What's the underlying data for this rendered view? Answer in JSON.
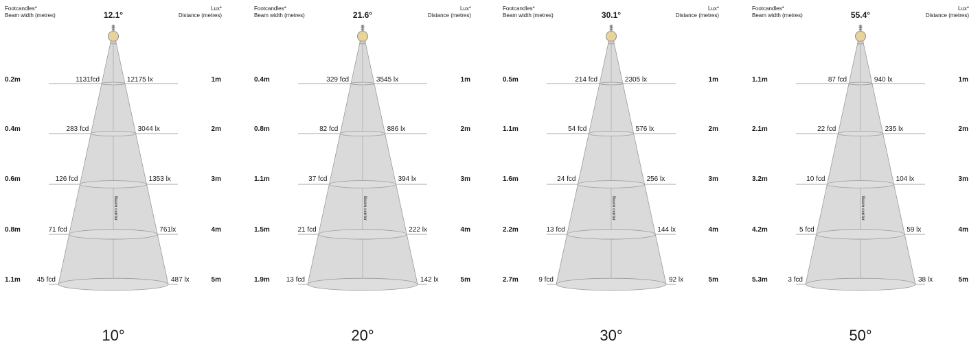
{
  "labels": {
    "footcandles": "Footcandles*",
    "beam_width": "Beam width (metres)",
    "lux": "Lux*",
    "distance": "Distance (metres)",
    "beam_center": "Beam center"
  },
  "colors": {
    "cone_fill": "#d4d4d4",
    "cone_stroke": "#9a9a9a",
    "ellipse_fill": "#dedede",
    "bulb_fill": "#e8d39a",
    "guide_line": "#8a8a8a",
    "text": "#1a1a1a"
  },
  "icons": {
    "fixture": "lamp-bulb-icon"
  },
  "panels": [
    {
      "angle_label": "10°",
      "beam_angle": "12.1°",
      "rows": [
        {
          "width": "0.2m",
          "fcd": "1131fcd",
          "lux": "12175 lx",
          "distance": "1m"
        },
        {
          "width": "0.4m",
          "fcd": "283 fcd",
          "lux": "3044 lx",
          "distance": "2m"
        },
        {
          "width": "0.6m",
          "fcd": "126 fcd",
          "lux": "1353 lx",
          "distance": "3m"
        },
        {
          "width": "0.8m",
          "fcd": "71 fcd",
          "lux": "761lx",
          "distance": "4m"
        },
        {
          "width": "1.1m",
          "fcd": "45 fcd",
          "lux": "487 lx",
          "distance": "5m"
        }
      ]
    },
    {
      "angle_label": "20°",
      "beam_angle": "21.6°",
      "rows": [
        {
          "width": "0.4m",
          "fcd": "329 fcd",
          "lux": "3545 lx",
          "distance": "1m"
        },
        {
          "width": "0.8m",
          "fcd": "82 fcd",
          "lux": "886 lx",
          "distance": "2m"
        },
        {
          "width": "1.1m",
          "fcd": "37 fcd",
          "lux": "394 lx",
          "distance": "3m"
        },
        {
          "width": "1.5m",
          "fcd": "21 fcd",
          "lux": "222 lx",
          "distance": "4m"
        },
        {
          "width": "1.9m",
          "fcd": "13 fcd",
          "lux": "142 lx",
          "distance": "5m"
        }
      ]
    },
    {
      "angle_label": "30°",
      "beam_angle": "30.1°",
      "rows": [
        {
          "width": "0.5m",
          "fcd": "214 fcd",
          "lux": "2305 lx",
          "distance": "1m"
        },
        {
          "width": "1.1m",
          "fcd": "54 fcd",
          "lux": "576 lx",
          "distance": "2m"
        },
        {
          "width": "1.6m",
          "fcd": "24 fcd",
          "lux": "256 lx",
          "distance": "3m"
        },
        {
          "width": "2.2m",
          "fcd": "13 fcd",
          "lux": "144 lx",
          "distance": "4m"
        },
        {
          "width": "2.7m",
          "fcd": "9 fcd",
          "lux": "92 lx",
          "distance": "5m"
        }
      ]
    },
    {
      "angle_label": "50°",
      "beam_angle": "55.4°",
      "rows": [
        {
          "width": "1.1m",
          "fcd": "87 fcd",
          "lux": "940 lx",
          "distance": "1m"
        },
        {
          "width": "2.1m",
          "fcd": "22 fcd",
          "lux": "235 lx",
          "distance": "2m"
        },
        {
          "width": "3.2m",
          "fcd": "10 fcd",
          "lux": "104 lx",
          "distance": "3m"
        },
        {
          "width": "4.2m",
          "fcd": "5 fcd",
          "lux": "59 lx",
          "distance": "4m"
        },
        {
          "width": "5.3m",
          "fcd": "3 fcd",
          "lux": "38 lx",
          "distance": "5m"
        }
      ]
    }
  ]
}
